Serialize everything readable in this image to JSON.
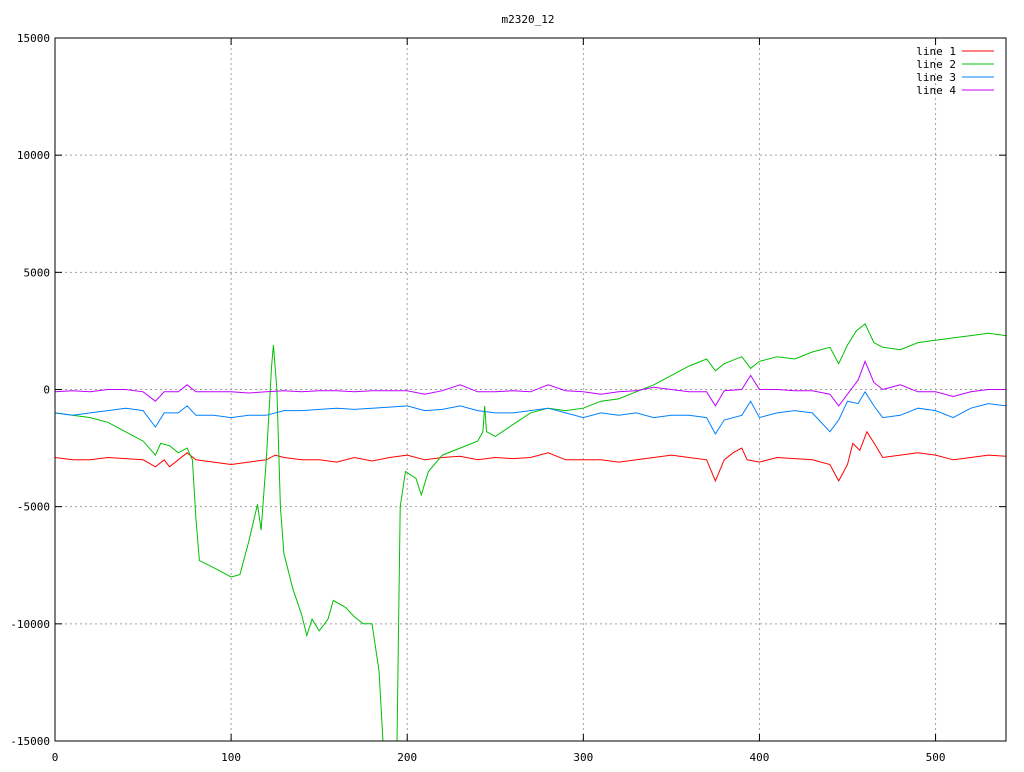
{
  "chart_data": {
    "type": "line",
    "title": "m2320_12",
    "xlabel": "",
    "ylabel": "",
    "xlim": [
      0,
      540
    ],
    "ylim": [
      -15000,
      15000
    ],
    "xticks": [
      0,
      100,
      200,
      300,
      400,
      500
    ],
    "yticks": [
      -15000,
      -10000,
      -5000,
      0,
      5000,
      10000,
      15000
    ],
    "grid": true,
    "legend_position": "top-right",
    "series": [
      {
        "name": "line 1",
        "color": "#ff0000",
        "points": [
          [
            0,
            -2900
          ],
          [
            10,
            -3000
          ],
          [
            20,
            -3000
          ],
          [
            30,
            -2900
          ],
          [
            40,
            -2950
          ],
          [
            50,
            -3000
          ],
          [
            57,
            -3300
          ],
          [
            62,
            -3000
          ],
          [
            65,
            -3300
          ],
          [
            70,
            -3000
          ],
          [
            75,
            -2700
          ],
          [
            80,
            -3000
          ],
          [
            90,
            -3100
          ],
          [
            100,
            -3200
          ],
          [
            110,
            -3100
          ],
          [
            120,
            -3000
          ],
          [
            125,
            -2800
          ],
          [
            130,
            -2900
          ],
          [
            140,
            -3000
          ],
          [
            150,
            -3000
          ],
          [
            160,
            -3100
          ],
          [
            170,
            -2900
          ],
          [
            180,
            -3050
          ],
          [
            190,
            -2900
          ],
          [
            200,
            -2800
          ],
          [
            210,
            -3000
          ],
          [
            220,
            -2900
          ],
          [
            230,
            -2850
          ],
          [
            240,
            -3000
          ],
          [
            250,
            -2900
          ],
          [
            260,
            -2950
          ],
          [
            270,
            -2900
          ],
          [
            280,
            -2700
          ],
          [
            290,
            -3000
          ],
          [
            300,
            -3000
          ],
          [
            310,
            -3000
          ],
          [
            320,
            -3100
          ],
          [
            330,
            -3000
          ],
          [
            340,
            -2900
          ],
          [
            350,
            -2800
          ],
          [
            360,
            -2900
          ],
          [
            370,
            -3000
          ],
          [
            375,
            -3900
          ],
          [
            380,
            -3000
          ],
          [
            385,
            -2700
          ],
          [
            390,
            -2500
          ],
          [
            393,
            -3000
          ],
          [
            400,
            -3100
          ],
          [
            410,
            -2900
          ],
          [
            420,
            -2950
          ],
          [
            430,
            -3000
          ],
          [
            440,
            -3200
          ],
          [
            445,
            -3900
          ],
          [
            450,
            -3200
          ],
          [
            453,
            -2300
          ],
          [
            457,
            -2600
          ],
          [
            461,
            -1800
          ],
          [
            466,
            -2400
          ],
          [
            470,
            -2900
          ],
          [
            480,
            -2800
          ],
          [
            490,
            -2700
          ],
          [
            500,
            -2800
          ],
          [
            510,
            -3000
          ],
          [
            520,
            -2900
          ],
          [
            530,
            -2800
          ],
          [
            540,
            -2850
          ]
        ]
      },
      {
        "name": "line 2",
        "color": "#00c000",
        "points": [
          [
            0,
            -1000
          ],
          [
            10,
            -1100
          ],
          [
            20,
            -1200
          ],
          [
            30,
            -1400
          ],
          [
            40,
            -1800
          ],
          [
            50,
            -2200
          ],
          [
            57,
            -2800
          ],
          [
            60,
            -2300
          ],
          [
            65,
            -2400
          ],
          [
            70,
            -2700
          ],
          [
            75,
            -2500
          ],
          [
            78,
            -3000
          ],
          [
            80,
            -5500
          ],
          [
            82,
            -7300
          ],
          [
            90,
            -7600
          ],
          [
            100,
            -8000
          ],
          [
            105,
            -7900
          ],
          [
            110,
            -6500
          ],
          [
            115,
            -4900
          ],
          [
            117,
            -6000
          ],
          [
            120,
            -3000
          ],
          [
            123,
            1000
          ],
          [
            124,
            1900
          ],
          [
            126,
            0
          ],
          [
            128,
            -5000
          ],
          [
            130,
            -7000
          ],
          [
            135,
            -8500
          ],
          [
            140,
            -9600
          ],
          [
            143,
            -10500
          ],
          [
            146,
            -9800
          ],
          [
            150,
            -10300
          ],
          [
            155,
            -9800
          ],
          [
            158,
            -9000
          ],
          [
            165,
            -9300
          ],
          [
            170,
            -9700
          ],
          [
            175,
            -10000
          ],
          [
            180,
            -10000
          ],
          [
            184,
            -12000
          ],
          [
            187,
            -16000
          ],
          [
            194,
            -16000
          ],
          [
            196,
            -5000
          ],
          [
            199,
            -3500
          ],
          [
            205,
            -3800
          ],
          [
            208,
            -4500
          ],
          [
            212,
            -3500
          ],
          [
            220,
            -2800
          ],
          [
            230,
            -2500
          ],
          [
            240,
            -2200
          ],
          [
            243,
            -1800
          ],
          [
            244,
            -700
          ],
          [
            245,
            -1800
          ],
          [
            250,
            -2000
          ],
          [
            260,
            -1500
          ],
          [
            270,
            -1000
          ],
          [
            280,
            -800
          ],
          [
            290,
            -900
          ],
          [
            300,
            -800
          ],
          [
            310,
            -500
          ],
          [
            320,
            -400
          ],
          [
            330,
            -100
          ],
          [
            340,
            200
          ],
          [
            350,
            600
          ],
          [
            360,
            1000
          ],
          [
            370,
            1300
          ],
          [
            375,
            800
          ],
          [
            380,
            1100
          ],
          [
            390,
            1400
          ],
          [
            395,
            900
          ],
          [
            400,
            1200
          ],
          [
            410,
            1400
          ],
          [
            420,
            1300
          ],
          [
            430,
            1600
          ],
          [
            440,
            1800
          ],
          [
            445,
            1100
          ],
          [
            450,
            1900
          ],
          [
            455,
            2500
          ],
          [
            460,
            2800
          ],
          [
            465,
            2000
          ],
          [
            470,
            1800
          ],
          [
            480,
            1700
          ],
          [
            490,
            2000
          ],
          [
            500,
            2100
          ],
          [
            510,
            2200
          ],
          [
            520,
            2300
          ],
          [
            530,
            2400
          ],
          [
            540,
            2300
          ]
        ]
      },
      {
        "name": "line 3",
        "color": "#0080ff",
        "points": [
          [
            0,
            -1000
          ],
          [
            10,
            -1100
          ],
          [
            20,
            -1000
          ],
          [
            30,
            -900
          ],
          [
            40,
            -800
          ],
          [
            50,
            -900
          ],
          [
            57,
            -1600
          ],
          [
            62,
            -1000
          ],
          [
            70,
            -1000
          ],
          [
            75,
            -700
          ],
          [
            80,
            -1100
          ],
          [
            90,
            -1100
          ],
          [
            100,
            -1200
          ],
          [
            110,
            -1100
          ],
          [
            120,
            -1100
          ],
          [
            130,
            -900
          ],
          [
            140,
            -900
          ],
          [
            150,
            -850
          ],
          [
            160,
            -800
          ],
          [
            170,
            -850
          ],
          [
            180,
            -800
          ],
          [
            190,
            -750
          ],
          [
            200,
            -700
          ],
          [
            210,
            -900
          ],
          [
            220,
            -850
          ],
          [
            230,
            -700
          ],
          [
            240,
            -900
          ],
          [
            250,
            -1000
          ],
          [
            260,
            -1000
          ],
          [
            270,
            -900
          ],
          [
            280,
            -800
          ],
          [
            290,
            -1000
          ],
          [
            300,
            -1200
          ],
          [
            310,
            -1000
          ],
          [
            320,
            -1100
          ],
          [
            330,
            -1000
          ],
          [
            340,
            -1200
          ],
          [
            350,
            -1100
          ],
          [
            360,
            -1100
          ],
          [
            370,
            -1200
          ],
          [
            375,
            -1900
          ],
          [
            380,
            -1300
          ],
          [
            390,
            -1100
          ],
          [
            395,
            -500
          ],
          [
            400,
            -1200
          ],
          [
            410,
            -1000
          ],
          [
            420,
            -900
          ],
          [
            430,
            -1000
          ],
          [
            440,
            -1800
          ],
          [
            445,
            -1300
          ],
          [
            450,
            -500
          ],
          [
            456,
            -600
          ],
          [
            460,
            -100
          ],
          [
            465,
            -700
          ],
          [
            470,
            -1200
          ],
          [
            480,
            -1100
          ],
          [
            490,
            -800
          ],
          [
            500,
            -900
          ],
          [
            510,
            -1200
          ],
          [
            520,
            -800
          ],
          [
            530,
            -600
          ],
          [
            540,
            -700
          ]
        ]
      },
      {
        "name": "line 4",
        "color": "#c000ff",
        "points": [
          [
            0,
            -100
          ],
          [
            10,
            -50
          ],
          [
            20,
            -100
          ],
          [
            30,
            0
          ],
          [
            40,
            0
          ],
          [
            50,
            -100
          ],
          [
            57,
            -500
          ],
          [
            62,
            -100
          ],
          [
            70,
            -100
          ],
          [
            75,
            200
          ],
          [
            80,
            -100
          ],
          [
            90,
            -100
          ],
          [
            100,
            -100
          ],
          [
            110,
            -150
          ],
          [
            120,
            -100
          ],
          [
            130,
            -50
          ],
          [
            140,
            -100
          ],
          [
            150,
            -50
          ],
          [
            160,
            -50
          ],
          [
            170,
            -100
          ],
          [
            180,
            -50
          ],
          [
            190,
            -50
          ],
          [
            200,
            -50
          ],
          [
            210,
            -200
          ],
          [
            220,
            -50
          ],
          [
            230,
            200
          ],
          [
            240,
            -100
          ],
          [
            250,
            -100
          ],
          [
            260,
            -50
          ],
          [
            270,
            -100
          ],
          [
            280,
            200
          ],
          [
            290,
            -50
          ],
          [
            300,
            -100
          ],
          [
            310,
            -200
          ],
          [
            320,
            -100
          ],
          [
            330,
            -50
          ],
          [
            340,
            100
          ],
          [
            350,
            0
          ],
          [
            360,
            -100
          ],
          [
            370,
            -100
          ],
          [
            375,
            -700
          ],
          [
            380,
            -50
          ],
          [
            390,
            0
          ],
          [
            395,
            600
          ],
          [
            400,
            0
          ],
          [
            410,
            0
          ],
          [
            420,
            -50
          ],
          [
            430,
            -50
          ],
          [
            440,
            -200
          ],
          [
            445,
            -700
          ],
          [
            450,
            -200
          ],
          [
            456,
            400
          ],
          [
            460,
            1200
          ],
          [
            465,
            300
          ],
          [
            470,
            0
          ],
          [
            480,
            200
          ],
          [
            490,
            -100
          ],
          [
            500,
            -100
          ],
          [
            510,
            -300
          ],
          [
            520,
            -100
          ],
          [
            530,
            0
          ],
          [
            540,
            0
          ]
        ]
      }
    ]
  }
}
